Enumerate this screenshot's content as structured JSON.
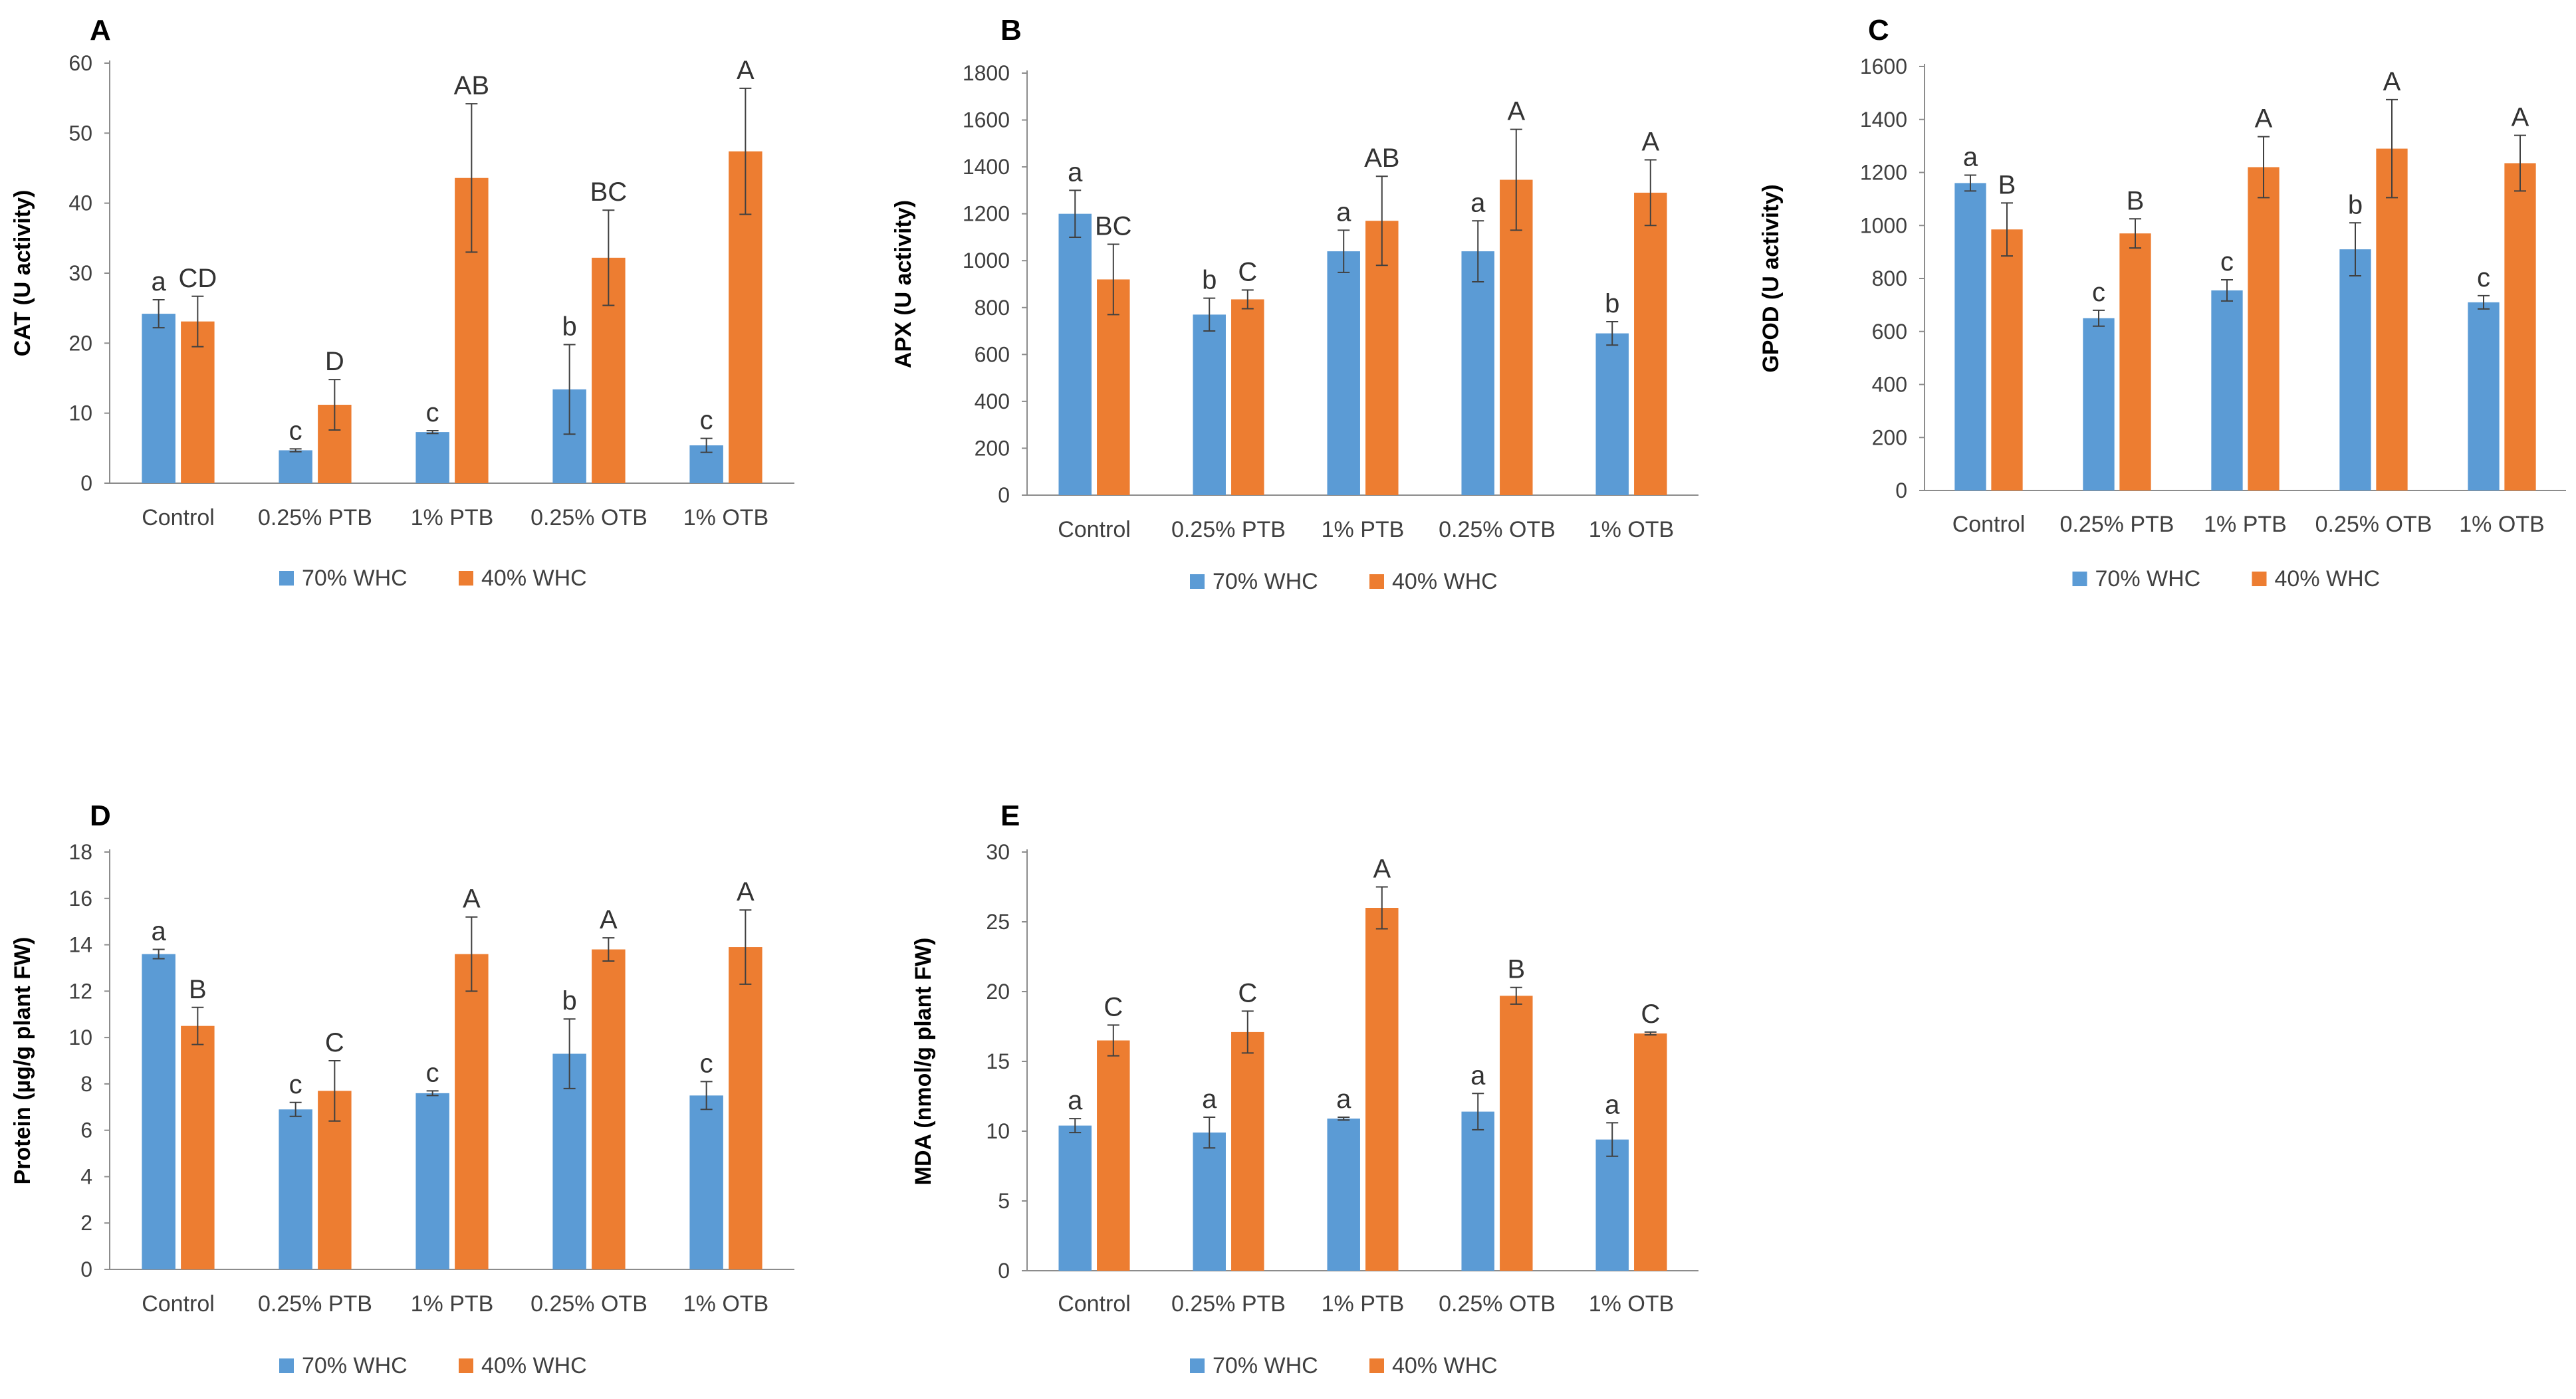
{
  "colors": {
    "series_70": "#5B9BD5",
    "series_40": "#ED7D31",
    "axis": "#8C8C8C",
    "errbar": "#404040"
  },
  "chart_data": [
    {
      "id": "A",
      "type": "bar",
      "panel_label": "A",
      "ylabel": "CAT (U activity)",
      "ylim": [
        0,
        60
      ],
      "yticks": [
        0,
        10,
        20,
        30,
        40,
        50,
        60
      ],
      "categories": [
        "Control",
        "0.25% PTB",
        "1% PTB",
        "0.25% OTB",
        "1% OTB"
      ],
      "series": [
        {
          "name": "70% WHC",
          "values": [
            24.2,
            4.7,
            7.3,
            13.4,
            5.4
          ],
          "errors": [
            2.0,
            0.2,
            0.2,
            6.4,
            1.0
          ],
          "letters": [
            "a",
            "c",
            "c",
            "b",
            "c"
          ]
        },
        {
          "name": "40% WHC",
          "values": [
            23.1,
            11.2,
            43.6,
            32.2,
            47.4
          ],
          "errors": [
            3.6,
            3.6,
            10.6,
            6.8,
            9.0
          ],
          "letters": [
            "CD",
            "D",
            "AB",
            "BC",
            "A"
          ]
        }
      ]
    },
    {
      "id": "B",
      "type": "bar",
      "panel_label": "B",
      "ylabel": "APX (U activity)",
      "ylim": [
        0,
        1800
      ],
      "yticks": [
        0,
        200,
        400,
        600,
        800,
        1000,
        1200,
        1400,
        1600,
        1800
      ],
      "categories": [
        "Control",
        "0.25% PTB",
        "1% PTB",
        "0.25% OTB",
        "1% OTB"
      ],
      "series": [
        {
          "name": "70% WHC",
          "values": [
            1200,
            770,
            1040,
            1040,
            690
          ],
          "errors": [
            100,
            70,
            90,
            130,
            50
          ],
          "letters": [
            "a",
            "b",
            "a",
            "a",
            "b"
          ]
        },
        {
          "name": "40% WHC",
          "values": [
            920,
            835,
            1170,
            1345,
            1290
          ],
          "errors": [
            150,
            40,
            190,
            215,
            140
          ],
          "letters": [
            "BC",
            "C",
            "AB",
            "A",
            "A"
          ]
        }
      ]
    },
    {
      "id": "C",
      "type": "bar",
      "panel_label": "C",
      "ylabel": "GPOD (U activity)",
      "ylim": [
        0,
        1600
      ],
      "yticks": [
        0,
        200,
        400,
        600,
        800,
        1000,
        1200,
        1400,
        1600
      ],
      "categories": [
        "Control",
        "0.25% PTB",
        "1% PTB",
        "0.25% OTB",
        "1% OTB"
      ],
      "series": [
        {
          "name": "70% WHC",
          "values": [
            1160,
            650,
            755,
            910,
            710
          ],
          "errors": [
            30,
            30,
            40,
            100,
            25
          ],
          "letters": [
            "a",
            "c",
            "c",
            "b",
            "c"
          ]
        },
        {
          "name": "40% WHC",
          "values": [
            985,
            970,
            1220,
            1290,
            1235
          ],
          "errors": [
            100,
            55,
            115,
            185,
            105
          ],
          "letters": [
            "B",
            "B",
            "A",
            "A",
            "A"
          ]
        }
      ]
    },
    {
      "id": "D",
      "type": "bar",
      "panel_label": "D",
      "ylabel": "Protein (µg/g plant FW)",
      "ylim": [
        0,
        18
      ],
      "yticks": [
        0,
        2,
        4,
        6,
        8,
        10,
        12,
        14,
        16,
        18
      ],
      "categories": [
        "Control",
        "0.25% PTB",
        "1% PTB",
        "0.25% OTB",
        "1% OTB"
      ],
      "series": [
        {
          "name": "70% WHC",
          "values": [
            13.6,
            6.9,
            7.6,
            9.3,
            7.5
          ],
          "errors": [
            0.2,
            0.3,
            0.1,
            1.5,
            0.6
          ],
          "letters": [
            "a",
            "c",
            "c",
            "b",
            "c"
          ]
        },
        {
          "name": "40% WHC",
          "values": [
            10.5,
            7.7,
            13.6,
            13.8,
            13.9
          ],
          "errors": [
            0.8,
            1.3,
            1.6,
            0.5,
            1.6
          ],
          "letters": [
            "B",
            "C",
            "A",
            "A",
            "A"
          ]
        }
      ]
    },
    {
      "id": "E",
      "type": "bar",
      "panel_label": "E",
      "ylabel": "MDA (nmol/g plant FW)",
      "ylim": [
        0,
        30
      ],
      "yticks": [
        0,
        5,
        10,
        15,
        20,
        25,
        30
      ],
      "categories": [
        "Control",
        "0.25% PTB",
        "1% PTB",
        "0.25% OTB",
        "1% OTB"
      ],
      "series": [
        {
          "name": "70% WHC",
          "values": [
            10.4,
            9.9,
            10.9,
            11.4,
            9.4
          ],
          "errors": [
            0.5,
            1.1,
            0.1,
            1.3,
            1.2
          ],
          "letters": [
            "a",
            "a",
            "a",
            "a",
            "a"
          ]
        },
        {
          "name": "40% WHC",
          "values": [
            16.5,
            17.1,
            26.0,
            19.7,
            17.0
          ],
          "errors": [
            1.1,
            1.5,
            1.5,
            0.6,
            0.1
          ],
          "letters": [
            "C",
            "C",
            "A",
            "B",
            "C"
          ]
        }
      ]
    }
  ]
}
